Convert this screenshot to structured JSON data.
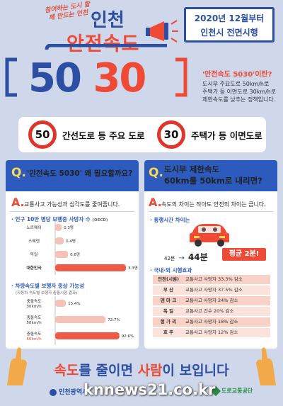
{
  "header": {
    "slogan": "참여하는 도시 함께 만드는 인천",
    "city": "인천",
    "campaign": "안전속도",
    "num50": "50",
    "num30": "30",
    "date_line1": "2020년 12월부터",
    "date_line2": "인천시 전면시행"
  },
  "definition": {
    "question": "'안전속도 5030'이란?",
    "lines": [
      "도시부 주요도로 50km/h로",
      "주택가 등 이면도로 30km/h로",
      "제한속도를 낮추는 정책입니다."
    ]
  },
  "signs": {
    "sign50": "50",
    "label50": "간선도로 등 주요 도로",
    "sign30": "30",
    "label30": "주택가 등 이면도로"
  },
  "left_panel": {
    "q": "Q.",
    "question": "'안전속도 5030' 왜 필요할까요?",
    "a": "A.",
    "answer": "교통사고 가능성과 심각도를 줄여줍니다.",
    "section1_title": "· 인구 10만 명당 보행중 사망자 수",
    "section1_unit": "(OECD)",
    "section2_title": "· 차량속도별 보행자 중상 가능성",
    "section2_sub": "(자동차 속도별 보행자 충돌시험 결과)"
  },
  "chart_data": [
    {
      "type": "bar",
      "title": "인구 10만 명당 보행중 사망자 수",
      "categories": [
        "노르웨이",
        "스웨덴",
        "독일",
        "대한민국"
      ],
      "values": [
        0.3,
        0.4,
        0.6,
        3.3
      ],
      "value_labels": [
        "0.3명",
        "0.4명",
        "0.6명",
        "3.3명"
      ]
    },
    {
      "type": "bar",
      "title": "차량속도별 보행자 중상 가능성",
      "categories": [
        "충돌속도 30km/h",
        "충돌속도 50km/h",
        "충돌속도 60km/h"
      ],
      "cat_line1": [
        "충돌속도",
        "충돌속도",
        "충돌속도"
      ],
      "cat_line2": [
        "30km/h",
        "50km/h",
        "60km/h"
      ],
      "values": [
        15.4,
        72.7,
        92.6
      ],
      "value_labels": [
        "15.4%",
        "72.7%",
        "92.6%"
      ]
    }
  ],
  "right_panel": {
    "q": "Q.",
    "question_line1": "도시부 제한속도",
    "question_line2": "60km를 50km로 내리면?",
    "a": "A.",
    "answer": "속도의 차이는 작아도 안전의 차이는 큽니다.",
    "travel_title": "· 통행시간 차이는",
    "time_from": "42분",
    "arrow": "→",
    "time_to": "44분",
    "avg_badge": "평균 2분!",
    "effects_title": "· 국내·외 시행효과",
    "effects": [
      {
        "place": "인천(시범)",
        "effect": "교통사고 사망자 33.3% 감소"
      },
      {
        "place": "부    산",
        "effect": "교통사고 사망자 37.5% 감소"
      },
      {
        "place": "덴 마 크",
        "effect": "교통사고 사망자 24% 감소"
      },
      {
        "place": "독    일",
        "effect": "교통사고 건수 20% 감소"
      },
      {
        "place": "헝 가 리",
        "effect": "교통사고 사망자 18% 감소"
      },
      {
        "place": "호    주",
        "effect": "교통사고 사망자 12% 감소"
      }
    ]
  },
  "footer": {
    "message_a": "속도",
    "message_b": "를 줄이면 ",
    "message_c": "사람",
    "message_d": "이 보입니다",
    "org_left": "인천광역시",
    "org_right": "도로교통공단",
    "watermark": "knnews21.co.kr"
  },
  "colors": {
    "blue": "#2c4fa3",
    "red": "#ee4a35",
    "panel": "#2c5bbd",
    "bg": "#cfd8ea"
  }
}
